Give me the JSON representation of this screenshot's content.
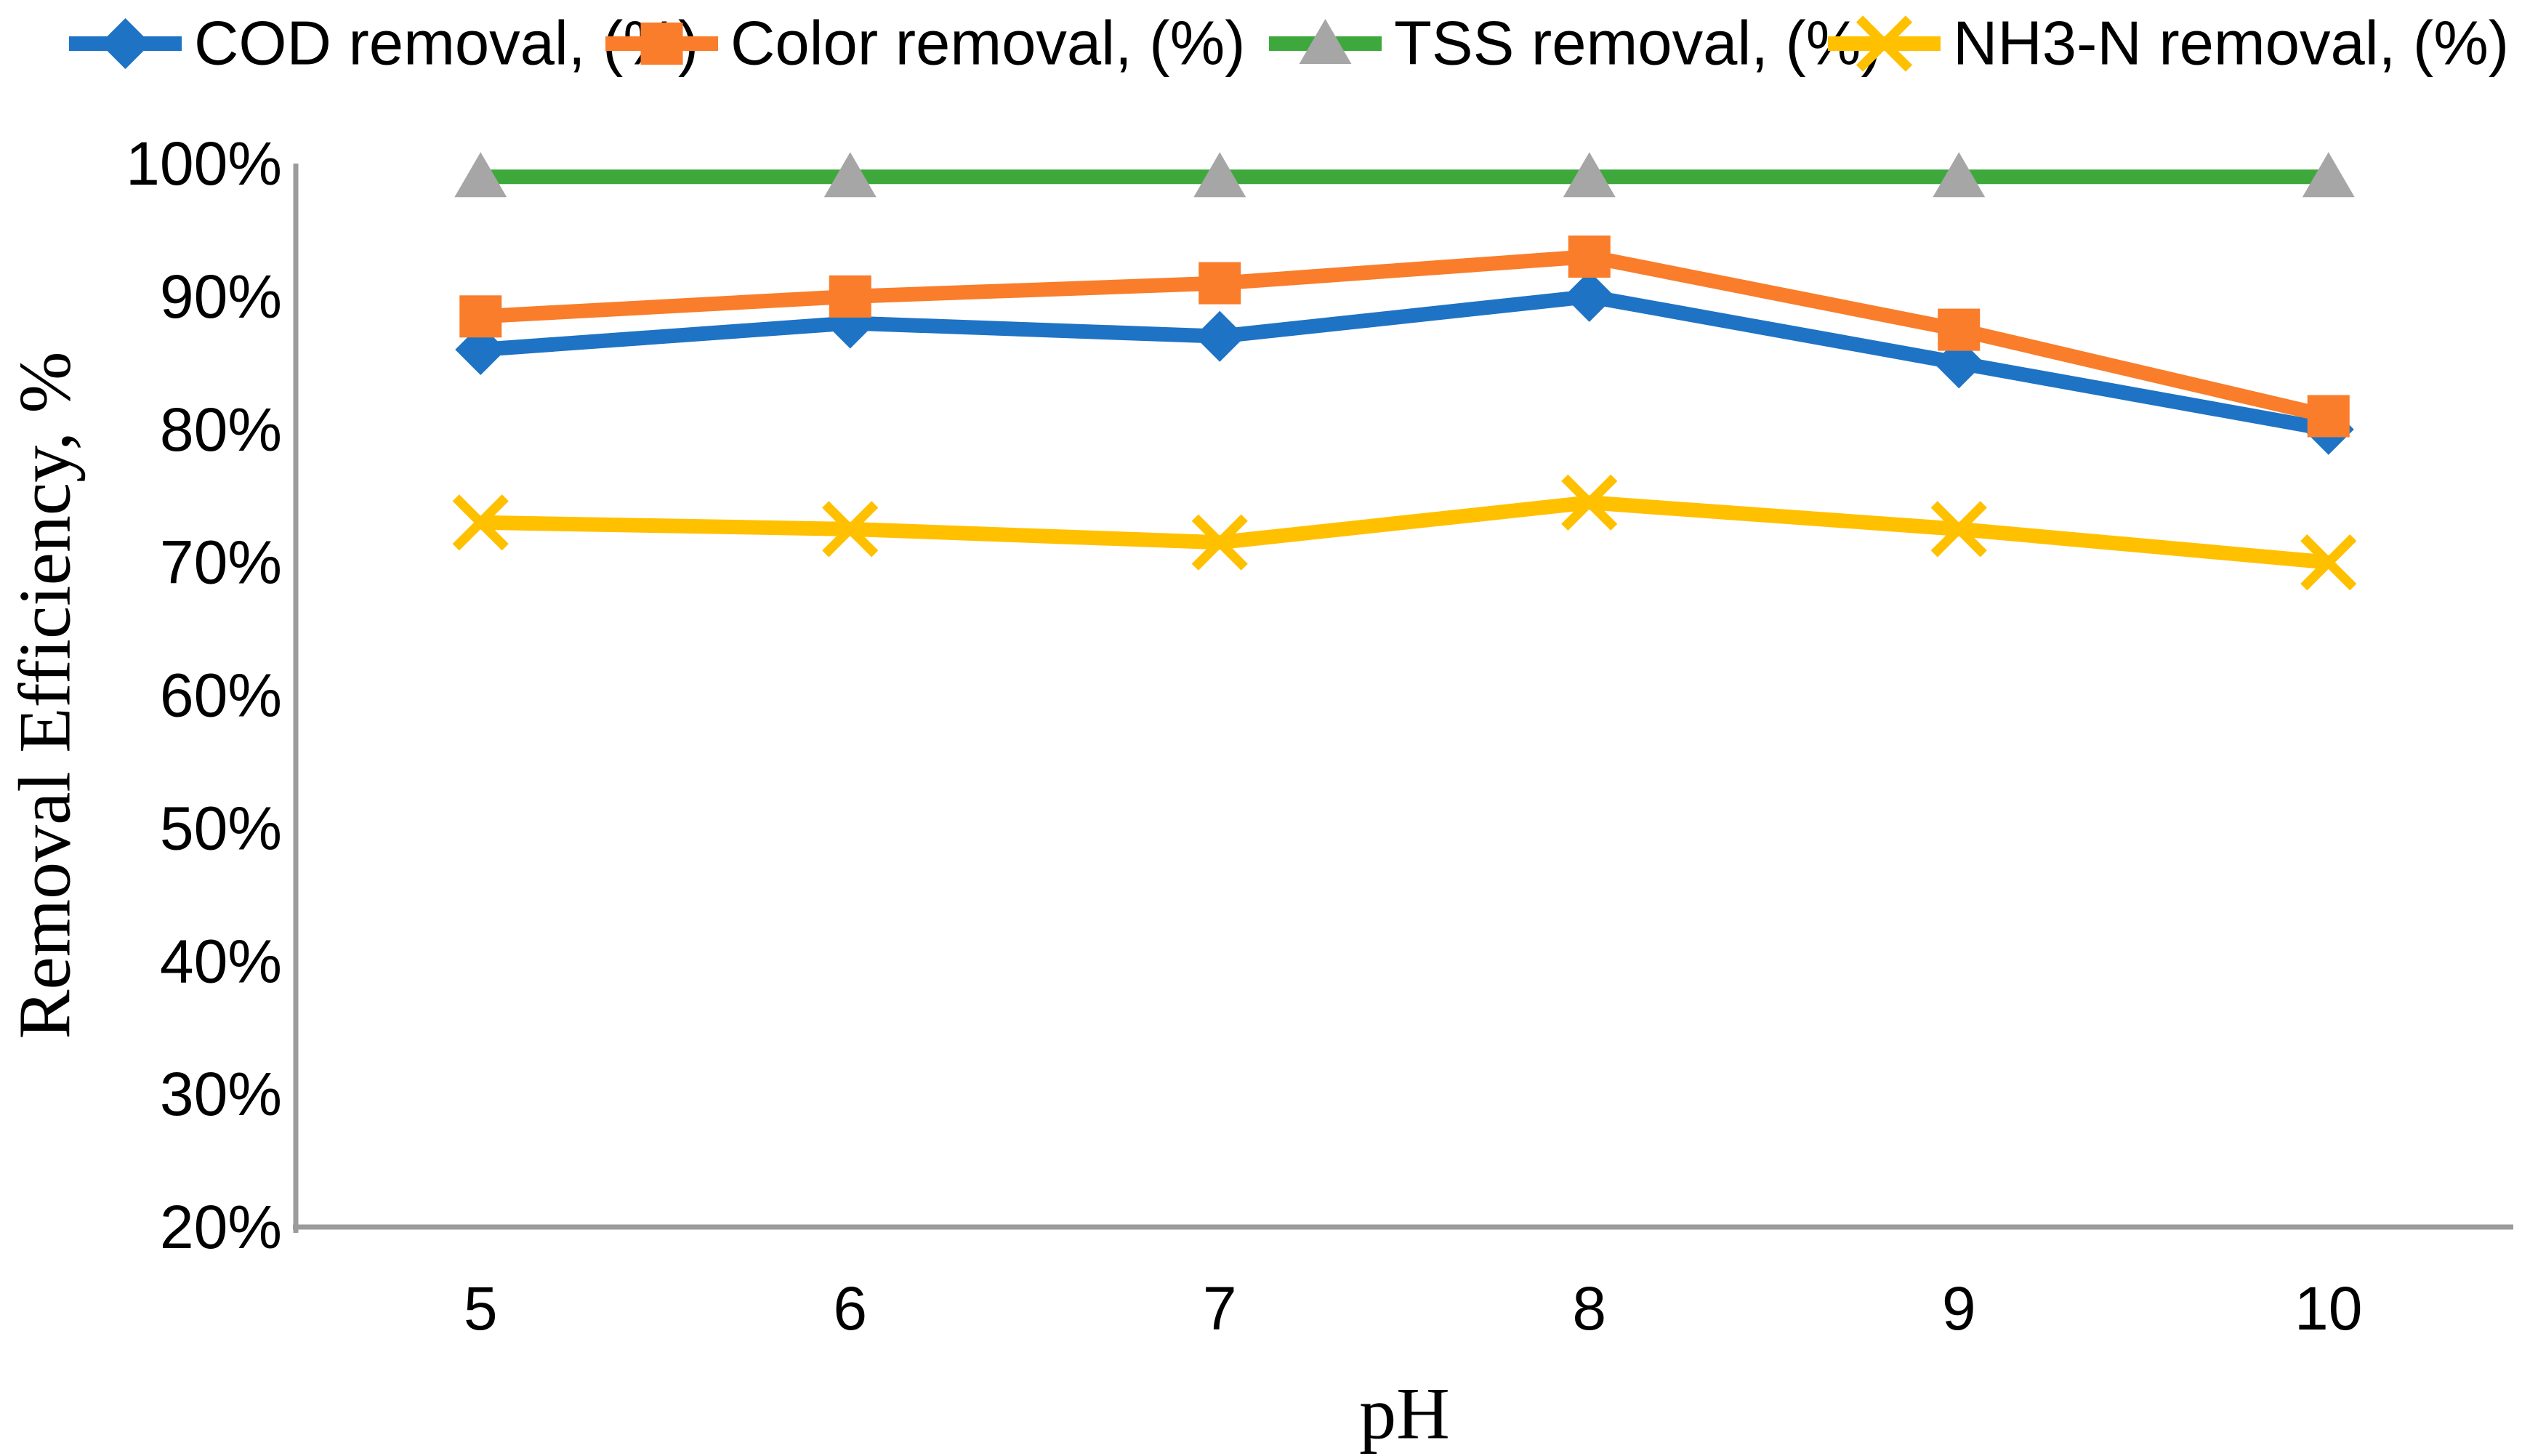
{
  "page": {
    "background": "#ffffff"
  },
  "chart_data": {
    "type": "line",
    "title": "",
    "xlabel": "pH",
    "ylabel": "Removal Efficiency, %",
    "categories": [
      "5",
      "6",
      "7",
      "8",
      "9",
      "10"
    ],
    "series": [
      {
        "name": "COD removal, (%)",
        "color": "#1E73C4",
        "marker": "diamond",
        "marker_color": "#1E73C4",
        "values": [
          86,
          88,
          87,
          90,
          85,
          80
        ]
      },
      {
        "name": "Color removal, (%)",
        "color": "#F97D2B",
        "marker": "square",
        "marker_color": "#F97D2B",
        "values": [
          88.5,
          90,
          91,
          93,
          87.5,
          81
        ]
      },
      {
        "name": "TSS removal, (%)",
        "color": "#3EA83C",
        "marker": "triangle",
        "marker_color": "#A6A6A6",
        "values": [
          99,
          99,
          99,
          99,
          99,
          99
        ]
      },
      {
        "name": "NH3-N removal, (%)",
        "color": "#FFC000",
        "marker": "x",
        "marker_color": "#FFC000",
        "values": [
          73,
          72.5,
          71.5,
          74.5,
          72.5,
          70
        ]
      }
    ],
    "y_axis": {
      "min": 20,
      "max": 100,
      "step": 10,
      "tick_labels": [
        "20%",
        "30%",
        "40%",
        "50%",
        "60%",
        "70%",
        "80%",
        "90%",
        "100%"
      ]
    },
    "x_axis": {
      "tick_labels": [
        "5",
        "6",
        "7",
        "8",
        "9",
        "10"
      ]
    },
    "grid": false,
    "legend_position": "top",
    "axis_color": "#9B9B9B",
    "ylim": [
      20,
      100
    ]
  }
}
